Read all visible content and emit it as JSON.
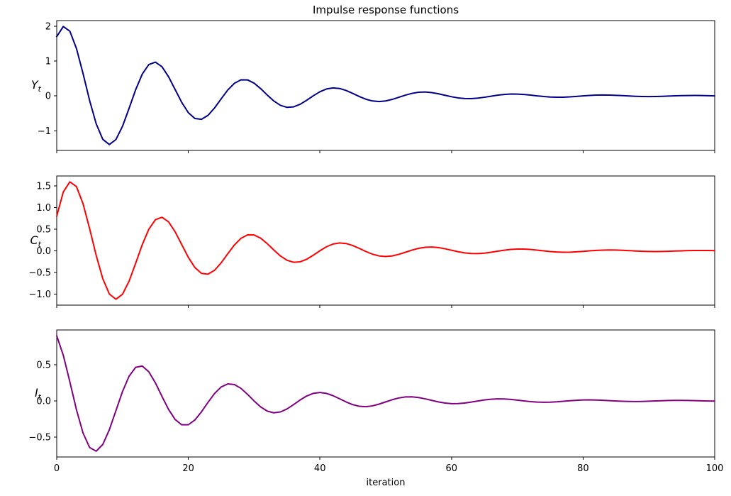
{
  "figure": {
    "title": "Impulse response functions",
    "background_color": "#ffffff",
    "text_color": "#000000",
    "axis_color": "#000000"
  },
  "chart_data": {
    "type": "line",
    "title": "Impulse response functions",
    "xlabel": "iteration",
    "grid": false,
    "legend": "none",
    "xlim": [
      0,
      100
    ],
    "xticks": [
      0,
      20,
      40,
      60,
      80,
      100
    ],
    "xtick_labels": [
      "0",
      "20",
      "40",
      "60",
      "80",
      "100"
    ],
    "x": [
      0,
      1,
      2,
      3,
      4,
      5,
      6,
      7,
      8,
      9,
      10,
      11,
      12,
      13,
      14,
      15,
      16,
      17,
      18,
      19,
      20,
      21,
      22,
      23,
      24,
      25,
      26,
      27,
      28,
      29,
      30,
      31,
      32,
      33,
      34,
      35,
      36,
      37,
      38,
      39,
      40,
      41,
      42,
      43,
      44,
      45,
      46,
      47,
      48,
      49,
      50,
      51,
      52,
      53,
      54,
      55,
      56,
      57,
      58,
      59,
      60,
      61,
      62,
      63,
      64,
      65,
      66,
      67,
      68,
      69,
      70,
      71,
      72,
      73,
      74,
      75,
      76,
      77,
      78,
      79,
      80,
      81,
      82,
      83,
      84,
      85,
      86,
      87,
      88,
      89,
      90,
      91,
      92,
      93,
      94,
      95,
      96,
      97,
      98,
      99,
      100
    ],
    "subplots": [
      {
        "id": "Yt",
        "ylabel_base": "Y",
        "ylabel_sub": "t",
        "color": "#00008b",
        "ylim": [
          -1.5622,
          2.1592
        ],
        "ytick_values": [
          -1,
          0,
          1,
          2
        ],
        "ytick_labels": [
          "−1",
          "0",
          "1",
          "2"
        ],
        "values": [
          1.7,
          1.99,
          1.853,
          1.3591,
          0.6428,
          -0.1305,
          -0.8003,
          -1.2431,
          -1.393,
          -1.2493,
          -0.8701,
          -0.3548,
          0.1799,
          0.6252,
          0.9009,
          0.9688,
          0.8362,
          0.5496,
          0.1818,
          -0.1856,
          -0.4792,
          -0.6476,
          -0.6696,
          -0.5555,
          -0.3417,
          -0.0809,
          0.1699,
          0.3617,
          0.462,
          0.4598,
          0.3659,
          0.2082,
          0.0246,
          -0.1455,
          -0.2695,
          -0.3273,
          -0.3138,
          -0.2389,
          -0.1237,
          0.0047,
          0.1193,
          0.1986,
          0.2303,
          0.2127,
          0.1543,
          0.0709,
          -0.0183,
          -0.095,
          -0.1449,
          -0.1609,
          -0.1432,
          -0.0985,
          -0.0386,
          0.023,
          0.0738,
          0.1048,
          0.1118,
          0.0957,
          0.062,
          0.0194,
          -0.0229,
          -0.0564,
          -0.0752,
          -0.0772,
          -0.0634,
          -0.0384,
          -0.0082,
          0.0206,
          0.0424,
          0.0536,
          0.0529,
          0.0417,
          0.0233,
          0.0021,
          -0.0175,
          -0.0315,
          -0.0379,
          -0.0361,
          -0.0272,
          -0.0137,
          0.0011,
          0.0142,
          0.0232,
          0.0266,
          0.0244,
          0.0175,
          0.0078,
          -0.0025,
          -0.0113,
          -0.0169,
          -0.0186,
          -0.0164,
          -0.0111,
          -0.0042,
          0.0029,
          0.0087,
          0.0122,
          0.0129,
          0.0109,
          0.007,
          0.002
        ]
      },
      {
        "id": "Ct",
        "ylabel_base": "C",
        "ylabel_sub": "t",
        "color": "#ff0000",
        "ylim": [
          -1.2497,
          1.7273
        ],
        "ytick_values": [
          -1.0,
          -0.5,
          0.0,
          0.5,
          1.0,
          1.5
        ],
        "ytick_labels": [
          "−1.0",
          "−0.5",
          "0.0",
          "0.5",
          "1.0",
          "1.5"
        ],
        "values": [
          0.8,
          1.36,
          1.592,
          1.4824,
          1.0873,
          0.5142,
          -0.1044,
          -0.6402,
          -0.9945,
          -1.1144,
          -0.9994,
          -0.6961,
          -0.2838,
          0.1439,
          0.5001,
          0.7207,
          0.7751,
          0.669,
          0.4397,
          0.1454,
          -0.1485,
          -0.3834,
          -0.5181,
          -0.5357,
          -0.4444,
          -0.2733,
          -0.0647,
          0.1359,
          0.2894,
          0.3696,
          0.3679,
          0.2927,
          0.1666,
          0.0197,
          -0.1164,
          -0.2156,
          -0.2618,
          -0.251,
          -0.1911,
          -0.0989,
          0.0038,
          0.0955,
          0.1589,
          0.1842,
          0.1701,
          0.1234,
          0.0567,
          -0.0146,
          -0.076,
          -0.116,
          -0.1288,
          -0.1145,
          -0.0788,
          -0.0309,
          0.0184,
          0.0591,
          0.0839,
          0.0894,
          0.0765,
          0.0496,
          0.0155,
          -0.0183,
          -0.0451,
          -0.0602,
          -0.0617,
          -0.0508,
          -0.0307,
          -0.0066,
          0.0165,
          0.034,
          0.0429,
          0.0423,
          0.0334,
          0.0186,
          0.0016,
          -0.014,
          -0.0252,
          -0.0303,
          -0.0288,
          -0.0217,
          -0.011,
          0.0009,
          0.0114,
          0.0186,
          0.0213,
          0.0195,
          0.014,
          0.0062,
          -0.002,
          -0.009,
          -0.0135,
          -0.0149,
          -0.0131,
          -0.0089,
          -0.0034,
          0.0023,
          0.007,
          0.0098,
          0.0103,
          0.0088,
          0.0056
        ]
      },
      {
        "id": "It",
        "ylabel_base": "I",
        "ylabel_sub": "t",
        "color": "#800080",
        "ylim": [
          -0.7757,
          0.9798
        ],
        "ytick_values": [
          -0.5,
          0.0,
          0.5
        ],
        "ytick_labels": [
          "−0.5",
          "0.0",
          "0.5"
        ],
        "values": [
          0.9,
          0.63,
          0.261,
          -0.1233,
          -0.4445,
          -0.6447,
          -0.6959,
          -0.6028,
          -0.3985,
          -0.1349,
          0.1293,
          0.3413,
          0.4638,
          0.4812,
          0.4007,
          0.2481,
          0.0612,
          -0.1193,
          -0.2579,
          -0.3311,
          -0.3307,
          -0.2642,
          -0.1515,
          -0.0198,
          0.1027,
          0.1924,
          0.2347,
          0.2258,
          0.1726,
          0.0902,
          -0.0019,
          -0.0845,
          -0.1419,
          -0.1652,
          -0.1531,
          -0.1116,
          -0.0519,
          0.0122,
          0.0674,
          0.1037,
          0.1156,
          0.1031,
          0.0714,
          0.0285,
          -0.0158,
          -0.0525,
          -0.075,
          -0.0803,
          -0.069,
          -0.045,
          -0.0144,
          0.016,
          0.0402,
          0.0539,
          0.0555,
          0.0458,
          0.0279,
          0.0062,
          -0.0145,
          -0.0303,
          -0.0384,
          -0.0381,
          -0.0301,
          -0.017,
          -0.0017,
          0.0123,
          0.0225,
          0.0272,
          0.0259,
          0.0196,
          0.01,
          -0.0006,
          -0.0101,
          -0.0166,
          -0.0191,
          -0.0176,
          -0.0127,
          -0.0057,
          0.0017,
          0.008,
          0.0121,
          0.0133,
          0.0118,
          0.0081,
          0.0031,
          -0.002,
          -0.0062,
          -0.0087,
          -0.0093,
          -0.0079,
          -0.0051,
          -0.0015,
          0.002,
          0.0047,
          0.0063,
          0.0064,
          0.0052,
          0.0031,
          0.0006,
          -0.0018,
          -0.0035
        ]
      }
    ]
  }
}
